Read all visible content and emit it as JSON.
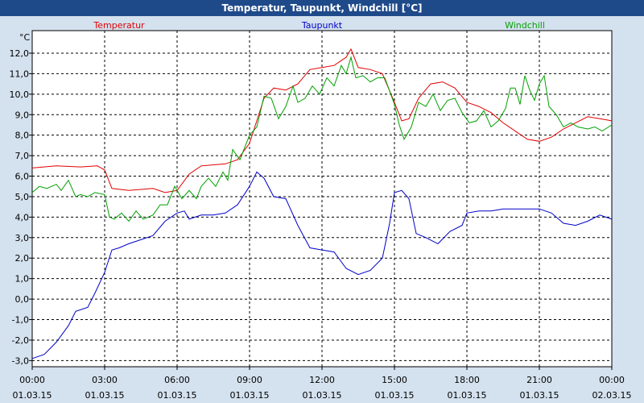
{
  "window": {
    "title": "Temperatur, Taupunkt, Windchill [°C]"
  },
  "colors": {
    "background": "#d4e1ee",
    "titlebar": "#1f4a8a",
    "plot_bg": "#ffffff"
  },
  "chart_data": {
    "type": "line",
    "title": "Temperatur, Taupunkt, Windchill [°C]",
    "yunit": "°C",
    "xlabel": "",
    "ylabel": "",
    "ylim": [
      -3.3,
      13.1
    ],
    "xlim": [
      0,
      24
    ],
    "yticks": [
      "-3,0",
      "-2,0",
      "-1,0",
      "0,0",
      "1,0",
      "2,0",
      "3,0",
      "4,0",
      "5,0",
      "6,0",
      "7,0",
      "8,0",
      "9,0",
      "10,0",
      "11,0",
      "12,0"
    ],
    "ytick_values": [
      -3,
      -2,
      -1,
      0,
      1,
      2,
      3,
      4,
      5,
      6,
      7,
      8,
      9,
      10,
      11,
      12
    ],
    "xticks": [
      {
        "time": "00:00",
        "date": "01.03.15",
        "x": 0
      },
      {
        "time": "03:00",
        "date": "01.03.15",
        "x": 3
      },
      {
        "time": "06:00",
        "date": "01.03.15",
        "x": 6
      },
      {
        "time": "09:00",
        "date": "01.03.15",
        "x": 9
      },
      {
        "time": "12:00",
        "date": "01.03.15",
        "x": 12
      },
      {
        "time": "15:00",
        "date": "01.03.15",
        "x": 15
      },
      {
        "time": "18:00",
        "date": "01.03.15",
        "x": 18
      },
      {
        "time": "21:00",
        "date": "01.03.15",
        "x": 21
      },
      {
        "time": "00:00",
        "date": "02.03.15",
        "x": 24
      }
    ],
    "grid": true,
    "legend": "top",
    "series": [
      {
        "name": "Temperatur",
        "color": "#e00000",
        "points": [
          [
            0,
            6.4
          ],
          [
            1,
            6.5
          ],
          [
            2,
            6.45
          ],
          [
            2.7,
            6.5
          ],
          [
            3,
            6.3
          ],
          [
            3.3,
            5.4
          ],
          [
            4,
            5.3
          ],
          [
            5,
            5.4
          ],
          [
            5.5,
            5.2
          ],
          [
            6,
            5.3
          ],
          [
            6.5,
            6.1
          ],
          [
            7,
            6.5
          ],
          [
            8,
            6.6
          ],
          [
            8.5,
            6.8
          ],
          [
            9,
            7.6
          ],
          [
            9.3,
            8.7
          ],
          [
            9.6,
            9.8
          ],
          [
            10,
            10.3
          ],
          [
            10.5,
            10.2
          ],
          [
            11,
            10.5
          ],
          [
            11.5,
            11.2
          ],
          [
            12,
            11.3
          ],
          [
            12.5,
            11.4
          ],
          [
            13,
            11.8
          ],
          [
            13.2,
            12.2
          ],
          [
            13.5,
            11.3
          ],
          [
            14,
            11.2
          ],
          [
            14.5,
            11.0
          ],
          [
            15,
            9.6
          ],
          [
            15.3,
            8.7
          ],
          [
            15.6,
            8.8
          ],
          [
            16,
            9.8
          ],
          [
            16.5,
            10.5
          ],
          [
            17,
            10.6
          ],
          [
            17.5,
            10.3
          ],
          [
            18,
            9.6
          ],
          [
            18.5,
            9.4
          ],
          [
            19,
            9.1
          ],
          [
            19.5,
            8.6
          ],
          [
            20,
            8.2
          ],
          [
            20.5,
            7.8
          ],
          [
            21,
            7.7
          ],
          [
            21.5,
            7.9
          ],
          [
            22,
            8.3
          ],
          [
            22.5,
            8.6
          ],
          [
            23,
            8.9
          ],
          [
            23.5,
            8.8
          ],
          [
            24,
            8.7
          ]
        ]
      },
      {
        "name": "Taupunkt",
        "color": "#0000c8",
        "points": [
          [
            0,
            -2.9
          ],
          [
            0.5,
            -2.7
          ],
          [
            1,
            -2.1
          ],
          [
            1.5,
            -1.3
          ],
          [
            1.8,
            -0.6
          ],
          [
            2.3,
            -0.4
          ],
          [
            2.6,
            0.3
          ],
          [
            3,
            1.3
          ],
          [
            3.3,
            2.4
          ],
          [
            3.6,
            2.5
          ],
          [
            4,
            2.7
          ],
          [
            4.5,
            2.9
          ],
          [
            5,
            3.1
          ],
          [
            5.5,
            3.8
          ],
          [
            6,
            4.2
          ],
          [
            6.3,
            4.3
          ],
          [
            6.5,
            3.9
          ],
          [
            7,
            4.1
          ],
          [
            7.5,
            4.1
          ],
          [
            8,
            4.2
          ],
          [
            8.5,
            4.6
          ],
          [
            9,
            5.5
          ],
          [
            9.3,
            6.2
          ],
          [
            9.6,
            5.9
          ],
          [
            10,
            5.0
          ],
          [
            10.5,
            4.9
          ],
          [
            11,
            3.6
          ],
          [
            11.5,
            2.5
          ],
          [
            12,
            2.4
          ],
          [
            12.5,
            2.3
          ],
          [
            13,
            1.5
          ],
          [
            13.5,
            1.2
          ],
          [
            14,
            1.4
          ],
          [
            14.5,
            2.0
          ],
          [
            14.8,
            3.7
          ],
          [
            15,
            5.2
          ],
          [
            15.3,
            5.3
          ],
          [
            15.6,
            4.9
          ],
          [
            15.9,
            3.2
          ],
          [
            16.3,
            3.0
          ],
          [
            16.8,
            2.7
          ],
          [
            17.3,
            3.3
          ],
          [
            17.8,
            3.6
          ],
          [
            18,
            4.2
          ],
          [
            18.5,
            4.3
          ],
          [
            19,
            4.3
          ],
          [
            19.5,
            4.4
          ],
          [
            20,
            4.4
          ],
          [
            21,
            4.4
          ],
          [
            21.5,
            4.2
          ],
          [
            22,
            3.7
          ],
          [
            22.5,
            3.6
          ],
          [
            23,
            3.8
          ],
          [
            23.5,
            4.1
          ],
          [
            24,
            3.9
          ]
        ]
      },
      {
        "name": "Windchill",
        "color": "#00a000",
        "points": [
          [
            0,
            5.2
          ],
          [
            0.3,
            5.5
          ],
          [
            0.6,
            5.4
          ],
          [
            1,
            5.6
          ],
          [
            1.2,
            5.3
          ],
          [
            1.5,
            5.8
          ],
          [
            1.8,
            5.0
          ],
          [
            2,
            5.1
          ],
          [
            2.3,
            5.0
          ],
          [
            2.6,
            5.2
          ],
          [
            3,
            5.1
          ],
          [
            3.2,
            4.0
          ],
          [
            3.4,
            3.9
          ],
          [
            3.7,
            4.2
          ],
          [
            4,
            3.8
          ],
          [
            4.3,
            4.3
          ],
          [
            4.6,
            3.9
          ],
          [
            5,
            4.1
          ],
          [
            5.3,
            4.6
          ],
          [
            5.6,
            4.6
          ],
          [
            5.9,
            5.5
          ],
          [
            6.2,
            4.9
          ],
          [
            6.5,
            5.3
          ],
          [
            6.8,
            4.9
          ],
          [
            7,
            5.5
          ],
          [
            7.3,
            5.9
          ],
          [
            7.6,
            5.5
          ],
          [
            7.9,
            6.2
          ],
          [
            8.1,
            5.8
          ],
          [
            8.3,
            7.3
          ],
          [
            8.6,
            6.8
          ],
          [
            9,
            8.0
          ],
          [
            9.3,
            8.4
          ],
          [
            9.6,
            9.9
          ],
          [
            9.9,
            9.8
          ],
          [
            10.2,
            8.8
          ],
          [
            10.5,
            9.4
          ],
          [
            10.8,
            10.4
          ],
          [
            11,
            9.6
          ],
          [
            11.3,
            9.8
          ],
          [
            11.6,
            10.4
          ],
          [
            11.9,
            10.0
          ],
          [
            12.2,
            10.8
          ],
          [
            12.5,
            10.4
          ],
          [
            12.8,
            11.4
          ],
          [
            13,
            11.0
          ],
          [
            13.2,
            11.8
          ],
          [
            13.4,
            10.8
          ],
          [
            13.7,
            10.9
          ],
          [
            14,
            10.6
          ],
          [
            14.3,
            10.8
          ],
          [
            14.6,
            10.8
          ],
          [
            15,
            9.5
          ],
          [
            15.2,
            8.5
          ],
          [
            15.4,
            7.8
          ],
          [
            15.7,
            8.4
          ],
          [
            16,
            9.6
          ],
          [
            16.3,
            9.4
          ],
          [
            16.6,
            10.0
          ],
          [
            16.9,
            9.2
          ],
          [
            17.2,
            9.7
          ],
          [
            17.5,
            9.8
          ],
          [
            17.8,
            9.1
          ],
          [
            18.1,
            8.6
          ],
          [
            18.4,
            8.7
          ],
          [
            18.7,
            9.2
          ],
          [
            19,
            8.4
          ],
          [
            19.3,
            8.7
          ],
          [
            19.6,
            9.3
          ],
          [
            19.8,
            10.3
          ],
          [
            20,
            10.3
          ],
          [
            20.2,
            9.5
          ],
          [
            20.4,
            10.9
          ],
          [
            20.6,
            10.2
          ],
          [
            20.8,
            9.7
          ],
          [
            21,
            10.5
          ],
          [
            21.2,
            10.9
          ],
          [
            21.4,
            9.4
          ],
          [
            21.7,
            9.0
          ],
          [
            22,
            8.4
          ],
          [
            22.3,
            8.6
          ],
          [
            22.6,
            8.4
          ],
          [
            23,
            8.3
          ],
          [
            23.3,
            8.4
          ],
          [
            23.6,
            8.2
          ],
          [
            24,
            8.5
          ]
        ]
      }
    ]
  }
}
